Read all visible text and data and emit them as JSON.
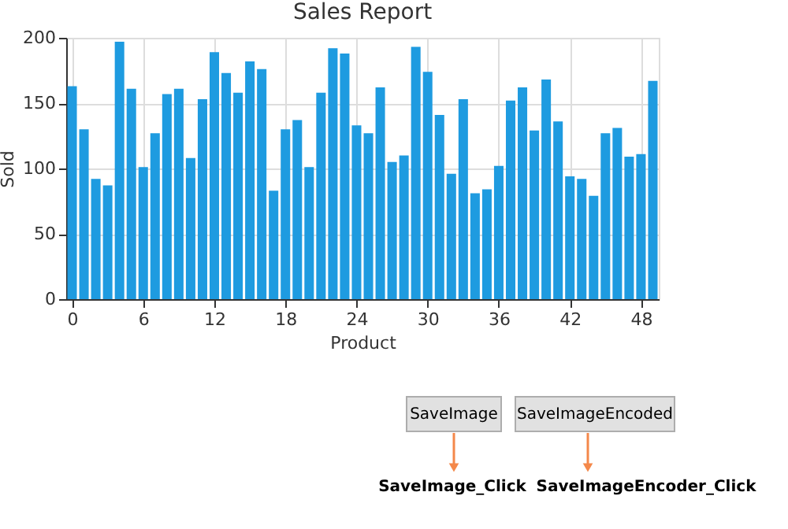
{
  "chart_data": {
    "type": "bar",
    "title": "Sales Report",
    "xlabel": "Product",
    "ylabel": "Sold",
    "x": [
      0,
      1,
      2,
      3,
      4,
      5,
      6,
      7,
      8,
      9,
      10,
      11,
      12,
      13,
      14,
      15,
      16,
      17,
      18,
      19,
      20,
      21,
      22,
      23,
      24,
      25,
      26,
      27,
      28,
      29,
      30,
      31,
      32,
      33,
      34,
      35,
      36,
      37,
      38,
      39,
      40,
      41,
      42,
      43,
      44,
      45,
      46,
      47,
      48,
      49
    ],
    "values": [
      163,
      130,
      92,
      87,
      197,
      161,
      101,
      127,
      157,
      161,
      108,
      153,
      189,
      173,
      158,
      182,
      176,
      83,
      130,
      137,
      101,
      158,
      192,
      188,
      133,
      127,
      162,
      105,
      110,
      193,
      174,
      141,
      96,
      153,
      81,
      84,
      102,
      152,
      162,
      129,
      168,
      136,
      94,
      92,
      79,
      127,
      131,
      109,
      111,
      167
    ],
    "color": "#1e9be0",
    "xlim": [
      -0.5,
      49.5
    ],
    "xticks": [
      0,
      6,
      12,
      18,
      24,
      30,
      36,
      42,
      48
    ],
    "ylim": [
      0,
      200
    ],
    "yticks": [
      0,
      50,
      100,
      150,
      200
    ],
    "grid": true,
    "annotations": [
      "SaveImage",
      "SaveImageEncoded",
      "SaveImage_Click",
      "SaveImageEncoder_Click"
    ]
  }
}
